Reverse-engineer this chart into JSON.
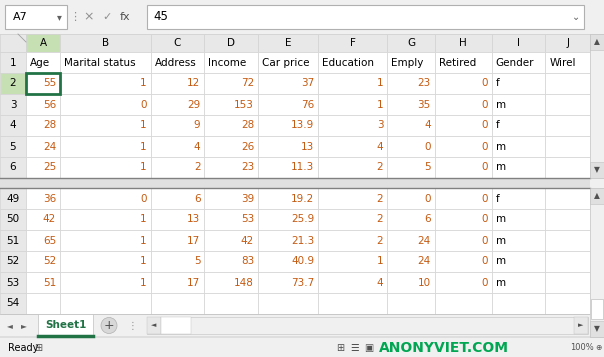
{
  "name_box": "A7",
  "formula_bar_value": "45",
  "col_headers": [
    "A",
    "B",
    "C",
    "D",
    "E",
    "F",
    "G",
    "H",
    "I",
    "J"
  ],
  "header_row": [
    "Age",
    "Marital status",
    "Address",
    "Income",
    "Car price",
    "Education",
    "Emply",
    "Retired",
    "Gender",
    "Wirel"
  ],
  "top_data": [
    [
      55,
      1,
      12,
      72,
      37,
      1,
      23,
      0,
      "f",
      ""
    ],
    [
      56,
      0,
      29,
      153,
      76,
      1,
      35,
      0,
      "m",
      ""
    ],
    [
      28,
      1,
      9,
      28,
      13.9,
      3,
      4,
      0,
      "f",
      ""
    ],
    [
      24,
      1,
      4,
      26,
      13,
      4,
      0,
      0,
      "m",
      ""
    ],
    [
      25,
      1,
      2,
      23,
      11.3,
      2,
      5,
      0,
      "m",
      ""
    ]
  ],
  "bottom_data": [
    [
      36,
      0,
      6,
      39,
      19.2,
      2,
      0,
      0,
      "f",
      ""
    ],
    [
      42,
      1,
      13,
      53,
      25.9,
      2,
      6,
      0,
      "m",
      ""
    ],
    [
      65,
      1,
      17,
      42,
      21.3,
      2,
      24,
      0,
      "m",
      ""
    ],
    [
      52,
      1,
      5,
      83,
      40.9,
      1,
      24,
      0,
      "m",
      ""
    ],
    [
      51,
      1,
      17,
      148,
      73.7,
      4,
      10,
      0,
      "m",
      ""
    ]
  ],
  "top_row_labels": [
    "1",
    "2",
    "3",
    "4",
    "5",
    "6"
  ],
  "bottom_row_labels": [
    "49",
    "50",
    "51",
    "52",
    "53",
    "54"
  ],
  "sheet_tab": "Sheet1",
  "bg_color": "#f0f0f0",
  "cell_bg": "#ffffff",
  "header_bg": "#e8e8e8",
  "selected_cell_border": "#217346",
  "col_header_selected_bg": "#c6e0b4",
  "row_header_selected_bg": "#c6e0b4",
  "orange_text": "#c55a11",
  "grid_color": "#d3d3d3",
  "split_color": "#808080",
  "tab_active_color": "#217346",
  "watermark_color": "#00a651",
  "col_widths_rel": [
    0.52,
    1.38,
    0.82,
    0.82,
    0.92,
    1.05,
    0.72,
    0.87,
    0.82,
    0.68
  ]
}
